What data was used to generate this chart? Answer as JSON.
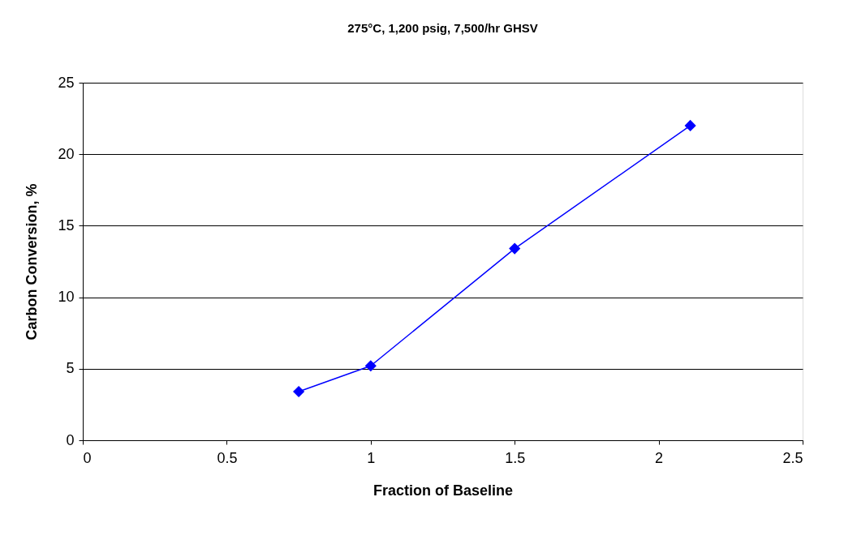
{
  "chart_data": {
    "type": "line",
    "title": "275°C, 1,200 psig, 7,500/hr GHSV",
    "xlabel": "Fraction of Baseline",
    "ylabel": "Carbon Conversion, %",
    "x": [
      0.75,
      1,
      1.5,
      2.11
    ],
    "series": [
      {
        "color": "#0000ff",
        "values": [
          3.4,
          5.2,
          13.4,
          22.0
        ]
      }
    ],
    "xlim": [
      0,
      2.5
    ],
    "xticks": [
      0,
      0.5,
      1,
      1.5,
      2,
      2.5
    ],
    "ylim": [
      0,
      25
    ],
    "yticks": [
      0,
      5,
      10,
      15,
      20,
      25
    ],
    "grid": "y",
    "marker": "diamond",
    "line_style": "solid"
  }
}
